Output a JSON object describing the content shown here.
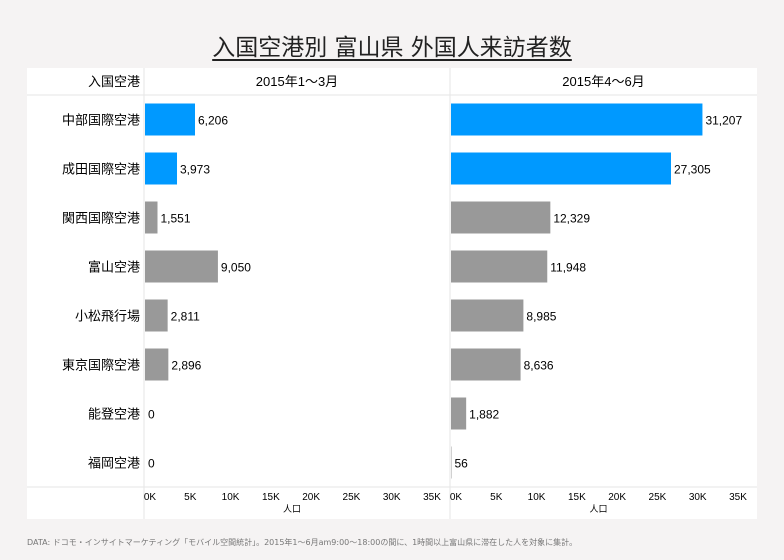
{
  "title": "入国空港別 富山県 外国人来訪者数",
  "footer": "DATA: ドコモ・インサイトマーケティング「モバイル空間統計」。2015年1～6月am9:00～18:00の間に、1時間以上富山県に滞在した人を対象に集計。",
  "colors": {
    "highlight": "#0099ff",
    "other": "#999999"
  },
  "chart_data": {
    "type": "bar",
    "orientation": "horizontal",
    "row_header": "入国空港",
    "categories": [
      "中部国際空港",
      "成田国際空港",
      "関西国際空港",
      "富山空港",
      "小松飛行場",
      "東京国際空港",
      "能登空港",
      "福岡空港"
    ],
    "highlighted": [
      true,
      true,
      false,
      false,
      false,
      false,
      false,
      false
    ],
    "series": [
      {
        "name": "2015年1～3月",
        "values": [
          6206,
          3973,
          1551,
          9050,
          2811,
          2896,
          0,
          0
        ],
        "labels": [
          "6,206",
          "3,973",
          "1,551",
          "9,050",
          "2,811",
          "2,896",
          "0",
          "0"
        ]
      },
      {
        "name": "2015年4～6月",
        "values": [
          31207,
          27305,
          12329,
          11948,
          8985,
          8636,
          1882,
          56
        ],
        "labels": [
          "31,207",
          "27,305",
          "12,329",
          "11,948",
          "8,985",
          "8,636",
          "1,882",
          "56"
        ]
      }
    ],
    "xlabel": "人口",
    "xlim": [
      0,
      35000
    ],
    "xticks": [
      "0K",
      "5K",
      "10K",
      "15K",
      "20K",
      "25K",
      "30K",
      "35K"
    ],
    "xtick_values": [
      0,
      5000,
      10000,
      15000,
      20000,
      25000,
      30000,
      35000
    ]
  }
}
